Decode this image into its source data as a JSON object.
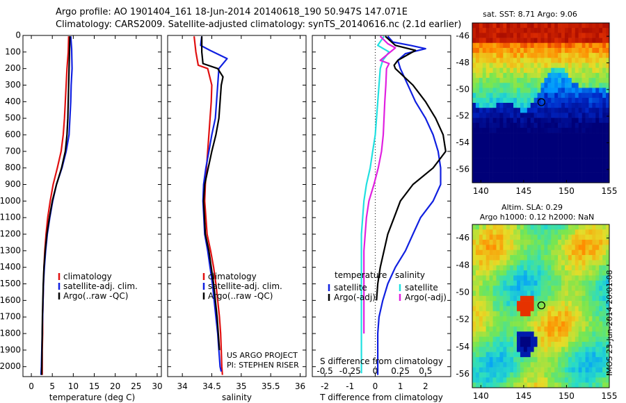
{
  "header": {
    "line1": "Argo profile: AO 1901404_161 18-Jun-2014 20140618_190 50.947S 147.071E",
    "line2": "Climatology: CARS2009. Satellite-adjusted climatology: synTS_20140616.nc (2.1d earlier)"
  },
  "colors": {
    "climatology": "#e01010",
    "satellite": "#1020e0",
    "argo": "#000000",
    "salinity_satellite": "#20e0e0",
    "salinity_argo": "#e020e0"
  },
  "credits": {
    "project": "US ARGO PROJECT",
    "pi": "PI: STEPHEN RISER",
    "imos": "IMOS 23-Jun-2014 20:01:08"
  },
  "chart_data": [
    {
      "type": "line",
      "id": "temperature",
      "xlabel": "temperature (deg C)",
      "ylabel": "",
      "xlim": [
        -2,
        31
      ],
      "ylim": [
        2060,
        0
      ],
      "xticks": [
        0,
        5,
        10,
        15,
        20,
        25,
        30
      ],
      "yticks": [
        0,
        100,
        200,
        300,
        400,
        500,
        600,
        700,
        800,
        900,
        1000,
        1100,
        1200,
        1300,
        1400,
        1500,
        1600,
        1700,
        1800,
        1900,
        2000
      ],
      "legend": [
        "climatology",
        "satellite-adj. clim.",
        "Argo(..raw -QC)"
      ],
      "legend_position": "lower-center",
      "series": [
        {
          "name": "climatology",
          "color": "#e01010",
          "x": [
            8.9,
            8.8,
            8.5,
            8.3,
            8.1,
            7.9,
            7.6,
            7.1,
            6.2,
            5.2,
            4.5,
            3.9,
            3.5,
            3.2,
            3.0,
            2.9,
            2.8,
            2.7,
            2.7,
            2.6,
            2.6,
            2.6
          ],
          "y": [
            5,
            100,
            200,
            300,
            400,
            500,
            600,
            700,
            800,
            900,
            1000,
            1100,
            1200,
            1300,
            1400,
            1500,
            1600,
            1700,
            1800,
            1900,
            2000,
            2050
          ]
        },
        {
          "name": "satellite-adj. clim.",
          "color": "#1020e0",
          "x": [
            9.4,
            9.6,
            9.7,
            9.5,
            9.4,
            9.2,
            9.0,
            8.3,
            7.3,
            6.0,
            5.1,
            4.4,
            3.8,
            3.4,
            3.1,
            2.9,
            2.8,
            2.7,
            2.6,
            2.5,
            2.4,
            2.3
          ],
          "y": [
            5,
            80,
            200,
            300,
            400,
            500,
            600,
            700,
            800,
            900,
            1000,
            1100,
            1200,
            1300,
            1400,
            1500,
            1600,
            1700,
            1800,
            1900,
            2000,
            2050
          ]
        },
        {
          "name": "Argo(..raw -QC)",
          "color": "#000000",
          "x": [
            9.2,
            9.1,
            9.0,
            8.9,
            8.8,
            8.7,
            8.5,
            8.1,
            7.2,
            6.0,
            5.0,
            4.3,
            3.7,
            3.3,
            3.0,
            2.85,
            2.75,
            2.65,
            2.6,
            2.55,
            2.5,
            2.45
          ],
          "y": [
            5,
            100,
            200,
            300,
            400,
            500,
            600,
            700,
            800,
            900,
            1000,
            1100,
            1200,
            1300,
            1400,
            1500,
            1600,
            1700,
            1800,
            1900,
            2000,
            2050
          ]
        }
      ]
    },
    {
      "type": "line",
      "id": "salinity",
      "xlabel": "salinity",
      "ylabel": "",
      "xlim": [
        33.75,
        36.1
      ],
      "ylim": [
        2060,
        0
      ],
      "xticks": [
        34,
        34.5,
        35,
        35.5,
        36
      ],
      "xtick_labels": [
        "34",
        "34.5",
        "35",
        "35.5",
        "36"
      ],
      "legend": [
        "climatology",
        "satellite-adj. clim.",
        "Argo(..raw -QC)"
      ],
      "legend_position": "lower-center",
      "series": [
        {
          "name": "climatology",
          "color": "#e01010",
          "x": [
            34.2,
            34.23,
            34.27,
            34.43,
            34.5,
            34.49,
            34.47,
            34.45,
            34.43,
            34.41,
            34.39,
            34.38,
            34.42,
            34.48,
            34.53,
            34.57,
            34.6,
            34.63,
            34.65,
            34.66,
            34.67,
            34.68
          ],
          "y": [
            5,
            100,
            180,
            200,
            300,
            400,
            500,
            600,
            700,
            800,
            900,
            1000,
            1200,
            1300,
            1400,
            1500,
            1600,
            1700,
            1800,
            1900,
            2000,
            2050
          ]
        },
        {
          "name": "satellite-adj. clim.",
          "color": "#1020e0",
          "x": [
            34.33,
            34.31,
            34.47,
            34.76,
            34.62,
            34.6,
            34.56,
            34.5,
            34.45,
            34.4,
            34.36,
            34.35,
            34.38,
            34.43,
            34.47,
            34.51,
            34.54,
            34.57,
            34.6,
            34.62,
            34.64,
            34.66
          ],
          "y": [
            5,
            60,
            90,
            140,
            200,
            300,
            500,
            600,
            700,
            800,
            900,
            1000,
            1200,
            1300,
            1400,
            1500,
            1600,
            1700,
            1800,
            1900,
            2000,
            2030
          ]
        },
        {
          "name": "Argo(..raw -QC)",
          "color": "#000000",
          "x": [
            34.33,
            34.33,
            34.35,
            34.6,
            34.69,
            34.66,
            34.62,
            34.57,
            34.5,
            34.44,
            34.38,
            34.36,
            34.39,
            34.45,
            34.49,
            34.53,
            34.56,
            34.59,
            34.61,
            34.63
          ],
          "y": [
            5,
            100,
            170,
            200,
            250,
            300,
            500,
            600,
            700,
            800,
            900,
            1000,
            1200,
            1300,
            1400,
            1500,
            1600,
            1700,
            1800,
            1900
          ]
        }
      ]
    },
    {
      "type": "line",
      "id": "difference",
      "xlabel": "T difference from climatology",
      "secondary_xlabel": "S difference from climatology",
      "ylabel": "",
      "xlim": [
        -2.5,
        3.0
      ],
      "ylim": [
        2060,
        0
      ],
      "xticks": [
        -2,
        -1,
        0,
        1,
        2
      ],
      "secondary_xticks": [
        -0.5,
        -0.25,
        0,
        0.25,
        0.5
      ],
      "secondary_xtick_labels": [
        "-0.5",
        "-0.25",
        "0",
        "0.25",
        "0.5"
      ],
      "zero_line": "dotted",
      "legend_left_title": "temperature",
      "legend_right_title": "salinity",
      "legend_left": [
        "satellite",
        "Argo(-adj)"
      ],
      "legend_right": [
        "satellite",
        "Argo(-adj)"
      ],
      "legend_position": "lower",
      "series": [
        {
          "name": "satellite",
          "group": "temperature",
          "color": "#1020e0",
          "x": [
            0.5,
            0.7,
            1.4,
            2.0,
            1.2,
            0.9,
            1.0,
            1.3,
            1.6,
            2.0,
            2.3,
            2.5,
            2.6,
            2.6,
            2.3,
            1.8,
            1.5,
            1.2,
            0.8,
            0.5,
            0.3,
            0.15,
            0.1,
            0.1,
            0.1,
            0.1
          ],
          "y": [
            5,
            40,
            60,
            80,
            110,
            150,
            200,
            300,
            400,
            500,
            600,
            700,
            800,
            900,
            1000,
            1100,
            1200,
            1300,
            1400,
            1500,
            1600,
            1700,
            1800,
            1900,
            2000,
            2050
          ]
        },
        {
          "name": "Argo(-adj)",
          "group": "temperature",
          "color": "#000000",
          "x": [
            0.4,
            0.8,
            1.6,
            0.9,
            0.75,
            0.8,
            1.5,
            2.0,
            2.4,
            2.7,
            2.8,
            2.3,
            1.5,
            1.0,
            0.75,
            0.5,
            0.35,
            0.2,
            0.1,
            0.05
          ],
          "y": [
            5,
            60,
            90,
            150,
            180,
            200,
            300,
            400,
            500,
            600,
            700,
            800,
            900,
            1000,
            1100,
            1200,
            1300,
            1400,
            1500,
            1600
          ]
        },
        {
          "name": "satellite",
          "group": "salinity",
          "color": "#20e0e0",
          "x": [
            0.35,
            0.1,
            0.55,
            0.3,
            0.2,
            0.15,
            0.1,
            0.05,
            0.0,
            -0.1,
            -0.2,
            -0.35,
            -0.45,
            -0.5,
            -0.55,
            -0.55,
            -0.55,
            -0.55,
            -0.55,
            -0.55,
            -0.55,
            -0.55,
            -0.55,
            -0.55
          ],
          "y": [
            5,
            60,
            100,
            150,
            200,
            300,
            400,
            500,
            600,
            700,
            800,
            900,
            1000,
            1100,
            1200,
            1300,
            1400,
            1500,
            1600,
            1700,
            1800,
            1900,
            2000,
            2040
          ]
        },
        {
          "name": "Argo(-adj)",
          "group": "salinity",
          "color": "#e020e0",
          "x": [
            0.2,
            0.5,
            0.8,
            0.2,
            0.55,
            0.45,
            0.42,
            0.38,
            0.35,
            0.32,
            0.25,
            0.12,
            -0.05,
            -0.25,
            -0.35,
            -0.4,
            -0.45,
            -0.45,
            -0.45,
            -0.45,
            -0.45,
            -0.45
          ],
          "y": [
            5,
            50,
            75,
            150,
            170,
            200,
            300,
            400,
            500,
            600,
            700,
            800,
            900,
            1000,
            1100,
            1200,
            1300,
            1400,
            1500,
            1600,
            1700,
            1800
          ]
        }
      ]
    },
    {
      "type": "heatmap",
      "id": "sst-map",
      "title": "sat. SST: 8.71  Argo: 9.06",
      "xlim": [
        139,
        155
      ],
      "ylim": [
        -57,
        -45
      ],
      "xticks": [
        140,
        145,
        150,
        155
      ],
      "yticks": [
        -46,
        -48,
        -50,
        -52,
        -54,
        -56
      ],
      "marker": {
        "lon": 147.07,
        "lat": -50.95
      }
    },
    {
      "type": "heatmap",
      "id": "sla-map",
      "title": "Altim. SLA: 0.29",
      "subtitle": "Argo h1000: 0.12 h2000: NaN",
      "xlim": [
        139,
        155
      ],
      "ylim": [
        -57,
        -45
      ],
      "xticks": [
        140,
        145,
        150,
        155
      ],
      "yticks": [
        -46,
        -48,
        -50,
        -52,
        -54,
        -56
      ],
      "marker": {
        "lon": 147.07,
        "lat": -50.95
      }
    }
  ]
}
